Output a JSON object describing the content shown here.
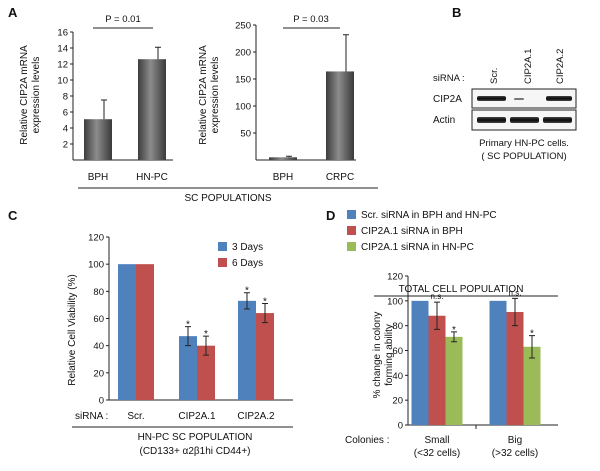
{
  "panels": {
    "a": "A",
    "b": "B",
    "c": "C",
    "d": "D"
  },
  "chart_data": [
    {
      "id": "A1",
      "type": "bar",
      "ylabel": "Relative CIP2A mRNA expression levels",
      "ylabel_lines": [
        "Relative CIP2A mRNA",
        "expression levels"
      ],
      "categories": [
        "BPH",
        "HN-PC"
      ],
      "values": [
        5.1,
        12.6
      ],
      "errors": [
        2.4,
        1.5
      ],
      "ylim": [
        0,
        16
      ],
      "yticks": [
        2,
        4,
        6,
        8,
        10,
        12,
        14,
        16
      ],
      "pvalue": "P = 0.01",
      "bar_color": "#5a5a5a"
    },
    {
      "id": "A2",
      "type": "bar",
      "ylabel": "Relative CIP2A mRNA expression levels",
      "ylabel_lines": [
        "Relative CIP2A mRNA",
        "expression levels"
      ],
      "categories": [
        "BPH",
        "CRPC"
      ],
      "values": [
        5,
        164
      ],
      "errors": [
        2,
        68
      ],
      "ylim": [
        0,
        250
      ],
      "yticks": [
        50,
        100,
        150,
        200,
        250
      ],
      "pvalue": "P = 0.03",
      "bar_color": "#5a5a5a"
    },
    {
      "id": "C",
      "type": "bar",
      "ylabel": "Relative Cell Viability (%)",
      "categories": [
        "Scr.",
        "CIP2A.1",
        "CIP2A.2"
      ],
      "series": [
        {
          "name": "3 Days",
          "color": "#4f81bd",
          "values": [
            100,
            47,
            73
          ],
          "errors": [
            0,
            7,
            6
          ],
          "marks": [
            "",
            "*",
            "*"
          ]
        },
        {
          "name": "6 Days",
          "color": "#c0504d",
          "values": [
            100,
            40,
            64
          ],
          "errors": [
            0,
            7,
            7
          ],
          "marks": [
            "",
            "*",
            "*"
          ]
        }
      ],
      "ylim": [
        0,
        120
      ],
      "yticks": [
        0,
        20,
        40,
        60,
        80,
        100,
        120
      ],
      "category_prefix": "siRNA :",
      "xlabel": "HN-PC SC POPULATION",
      "xlabel2": "(CD133+ α2β1hi  CD44+)",
      "legend": "top-right"
    },
    {
      "id": "D",
      "type": "bar",
      "title": "TOTAL CELL POPULATION",
      "ylabel": "% change in colony forming ability",
      "ylabel_lines": [
        "% change in colony",
        "forming ability"
      ],
      "categories": [
        "Small",
        "Big"
      ],
      "category_sub": [
        "(<32 cells)",
        "(>32 cells)"
      ],
      "category_prefix": "Colonies :",
      "series": [
        {
          "name": "Scr. siRNA in BPH and HN-PC",
          "color": "#4f81bd",
          "values": [
            100,
            100
          ],
          "errors": [
            0,
            0
          ],
          "marks": [
            "",
            ""
          ]
        },
        {
          "name": "CIP2A.1 siRNA in BPH",
          "color": "#c0504d",
          "values": [
            88,
            91
          ],
          "errors": [
            11,
            11
          ],
          "marks": [
            "n.s.",
            "n.s."
          ]
        },
        {
          "name": "CIP2A.1 siRNA in HN-PC",
          "color": "#9bbb59",
          "values": [
            71,
            63
          ],
          "errors": [
            4,
            9
          ],
          "marks": [
            "*",
            "*"
          ]
        }
      ],
      "ylim": [
        0,
        120
      ],
      "yticks": [
        0,
        20,
        40,
        60,
        80,
        100,
        120
      ],
      "legend": "top"
    }
  ],
  "panel_a_footer": "SC POPULATIONS",
  "blot": {
    "label_prefix": "siRNA :",
    "lanes": [
      "Scr.",
      "CIP2A.1",
      "CIP2A.2"
    ],
    "rows": [
      "CIP2A",
      "Actin"
    ],
    "caption_1": "Primary HN-PC cells.",
    "caption_2": "( SC POPULATION)"
  }
}
